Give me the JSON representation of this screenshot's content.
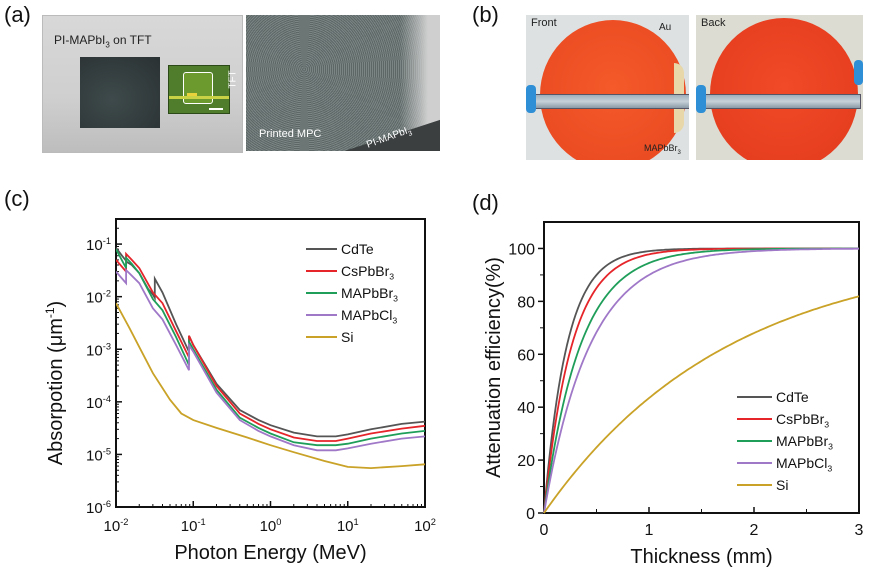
{
  "panels": {
    "a": {
      "label": "(a)",
      "photo1_caption_main": "PI-MAPbI",
      "photo1_caption_sub": "3",
      "photo1_caption_tail": " on TFT",
      "photo1_side_label": "TFT",
      "photo2_caption": "Printed MPC",
      "photo2_edge_main": "PI-MAPbI",
      "photo2_edge_sub": "3"
    },
    "b": {
      "label": "(b)",
      "front_label": "Front",
      "back_label": "Back",
      "au_label": "Au",
      "mapbbr_main": "MAPbBr",
      "mapbbr_sub": "3"
    },
    "c": {
      "label": "(c)"
    },
    "d": {
      "label": "(d)"
    }
  },
  "chart_data": [
    {
      "id": "c",
      "type": "line",
      "title": "",
      "xlabel": "Photon Energy (MeV)",
      "ylabel": "Absorpotion (μm⁻¹)",
      "xscale": "log",
      "yscale": "log",
      "xlim": [
        0.01,
        100
      ],
      "ylim": [
        1e-06,
        0.3
      ],
      "xticks": [
        {
          "v": 0.01,
          "label": "10",
          "exp": "-2"
        },
        {
          "v": 0.1,
          "label": "10",
          "exp": "-1"
        },
        {
          "v": 1,
          "label": "10",
          "exp": "0"
        },
        {
          "v": 10,
          "label": "10",
          "exp": "1"
        },
        {
          "v": 100,
          "label": "10",
          "exp": "2"
        }
      ],
      "yticks": [
        {
          "v": 1e-06,
          "label": "10",
          "exp": "-6"
        },
        {
          "v": 1e-05,
          "label": "10",
          "exp": "-5"
        },
        {
          "v": 0.0001,
          "label": "10",
          "exp": "-4"
        },
        {
          "v": 0.001,
          "label": "10",
          "exp": "-3"
        },
        {
          "v": 0.01,
          "label": "10",
          "exp": "-2"
        },
        {
          "v": 0.1,
          "label": "10",
          "exp": "-1"
        }
      ],
      "legend_position": "top-right",
      "series": [
        {
          "name": "CdTe",
          "sub": "",
          "color": "#555555",
          "x": [
            0.01,
            0.012,
            0.014,
            0.016,
            0.02,
            0.026,
            0.03,
            0.0318,
            0.0318,
            0.04,
            0.06,
            0.088,
            0.088,
            0.1,
            0.2,
            0.4,
            0.7,
            1,
            2,
            4,
            7,
            10,
            20,
            50,
            100
          ],
          "y": [
            0.085,
            0.06,
            0.045,
            0.04,
            0.028,
            0.014,
            0.011,
            0.0095,
            0.022,
            0.012,
            0.003,
            0.0009,
            0.0018,
            0.0012,
            0.00022,
            7e-05,
            4.5e-05,
            3.6e-05,
            2.6e-05,
            2.2e-05,
            2.2e-05,
            2.4e-05,
            3e-05,
            3.8e-05,
            4.2e-05
          ]
        },
        {
          "name": "CsPbBr",
          "sub": "3",
          "color": "#e5252a",
          "x": [
            0.01,
            0.0135,
            0.0135,
            0.016,
            0.02,
            0.03,
            0.04,
            0.06,
            0.088,
            0.088,
            0.1,
            0.2,
            0.4,
            0.7,
            1,
            2,
            4,
            7,
            10,
            20,
            50,
            100
          ],
          "y": [
            0.05,
            0.03,
            0.065,
            0.05,
            0.035,
            0.012,
            0.0075,
            0.0022,
            0.0007,
            0.0018,
            0.0012,
            0.0002,
            6e-05,
            3.8e-05,
            3e-05,
            2.1e-05,
            1.8e-05,
            1.8e-05,
            2e-05,
            2.5e-05,
            3.1e-05,
            3.5e-05
          ]
        },
        {
          "name": "MAPbBr",
          "sub": "3",
          "color": "#1f9e5a",
          "x": [
            0.01,
            0.0135,
            0.0135,
            0.016,
            0.02,
            0.03,
            0.04,
            0.06,
            0.088,
            0.088,
            0.1,
            0.2,
            0.4,
            0.7,
            1,
            2,
            4,
            7,
            10,
            20,
            50,
            100
          ],
          "y": [
            0.08,
            0.035,
            0.055,
            0.042,
            0.028,
            0.009,
            0.0055,
            0.0017,
            0.0005,
            0.0014,
            0.001,
            0.00017,
            5e-05,
            3.2e-05,
            2.5e-05,
            1.7e-05,
            1.5e-05,
            1.5e-05,
            1.6e-05,
            2e-05,
            2.5e-05,
            2.8e-05
          ]
        },
        {
          "name": "MAPbCl",
          "sub": "3",
          "color": "#a078c8",
          "x": [
            0.01,
            0.0135,
            0.0135,
            0.016,
            0.02,
            0.03,
            0.04,
            0.06,
            0.088,
            0.088,
            0.1,
            0.2,
            0.4,
            0.7,
            1,
            2,
            4,
            7,
            10,
            20,
            50,
            100
          ],
          "y": [
            0.03,
            0.018,
            0.032,
            0.025,
            0.018,
            0.006,
            0.0037,
            0.0012,
            0.0004,
            0.0012,
            0.0009,
            0.00015,
            4.5e-05,
            2.8e-05,
            2.2e-05,
            1.5e-05,
            1.2e-05,
            1.2e-05,
            1.3e-05,
            1.6e-05,
            2e-05,
            2.2e-05
          ]
        },
        {
          "name": "Si",
          "sub": "",
          "color": "#c9a227",
          "x": [
            0.01,
            0.015,
            0.02,
            0.03,
            0.05,
            0.07,
            0.1,
            0.2,
            0.5,
            1,
            2,
            5,
            10,
            20,
            50,
            100
          ],
          "y": [
            0.0075,
            0.0025,
            0.0011,
            0.00035,
            0.00011,
            6e-05,
            4.5e-05,
            3.2e-05,
            2.1e-05,
            1.5e-05,
            1.1e-05,
            7.5e-06,
            5.8e-06,
            5.5e-06,
            6e-06,
            6.5e-06
          ]
        }
      ]
    },
    {
      "id": "d",
      "type": "line",
      "title": "",
      "xlabel": "Thickness (mm)",
      "ylabel": "Attenuation efficiency(%)",
      "xlim": [
        0,
        3
      ],
      "ylim": [
        0,
        110
      ],
      "xticks": [
        0,
        1,
        2,
        3
      ],
      "yticks": [
        0,
        20,
        40,
        60,
        80,
        100
      ],
      "legend_position": "bottom-right",
      "series": [
        {
          "name": "CdTe",
          "sub": "",
          "color": "#555555",
          "attenuation_coeff_per_mm": 4.6
        },
        {
          "name": "CsPbBr",
          "sub": "3",
          "color": "#e5252a",
          "attenuation_coeff_per_mm": 3.8
        },
        {
          "name": "MAPbBr",
          "sub": "3",
          "color": "#1f9e5a",
          "attenuation_coeff_per_mm": 2.9
        },
        {
          "name": "MAPbCl",
          "sub": "3",
          "color": "#a078c8",
          "attenuation_coeff_per_mm": 2.3
        },
        {
          "name": "Si",
          "sub": "",
          "color": "#c9a227",
          "attenuation_coeff_per_mm": 0.57
        }
      ],
      "sample_points": {
        "x": [
          0,
          0.5,
          1,
          1.5,
          2,
          3
        ],
        "CdTe": [
          0,
          90,
          99,
          100,
          100,
          100
        ],
        "Si": [
          0,
          25,
          44,
          58,
          68,
          82
        ]
      }
    }
  ]
}
